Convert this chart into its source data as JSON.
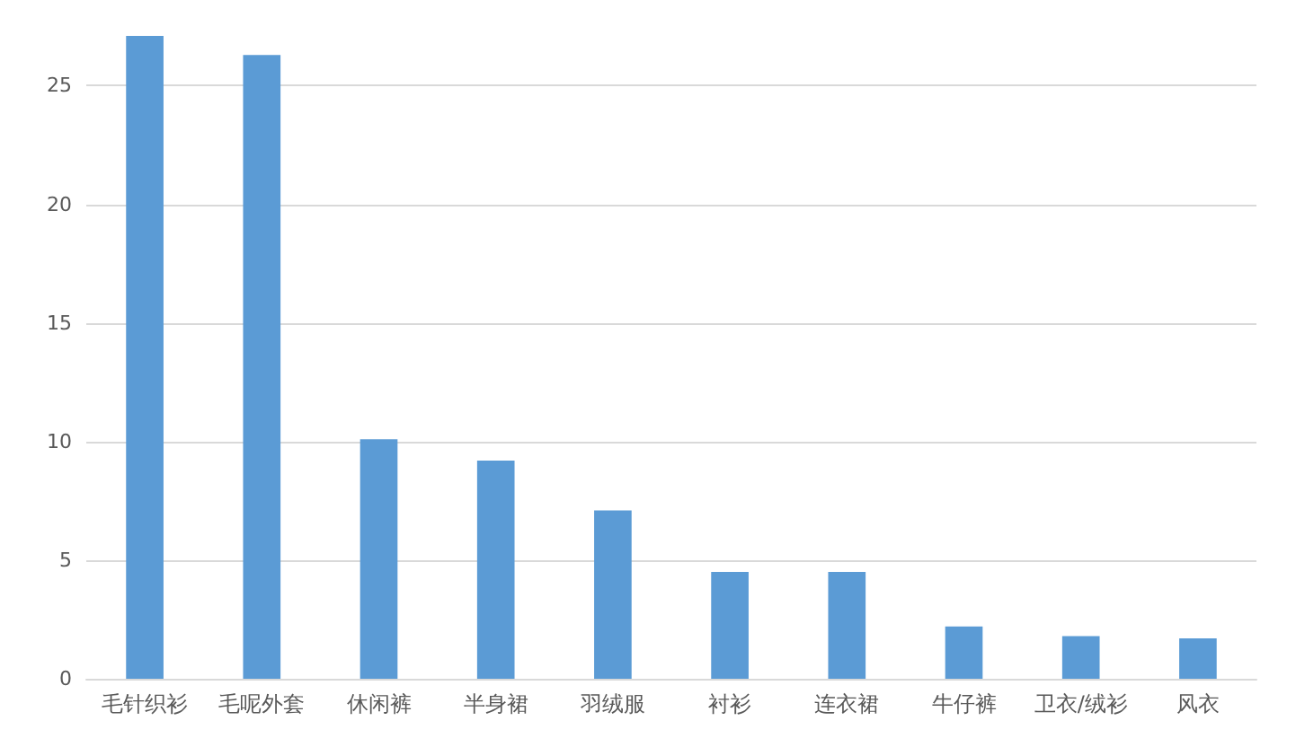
{
  "chart_data": {
    "type": "bar",
    "categories": [
      "毛针织衫",
      "毛呢外套",
      "休闲裤",
      "半身裙",
      "羽绒服",
      "衬衫",
      "连衣裙",
      "牛仔裤",
      "卫衣/绒衫",
      "风衣"
    ],
    "values": [
      27.1,
      26.3,
      10.1,
      9.2,
      7.1,
      4.5,
      4.5,
      2.2,
      1.8,
      1.7
    ],
    "color": "#5b9bd5",
    "ylim": [
      0,
      27.1
    ],
    "yticks": [
      0,
      5,
      10,
      15,
      20,
      25
    ],
    "grid": "y"
  }
}
